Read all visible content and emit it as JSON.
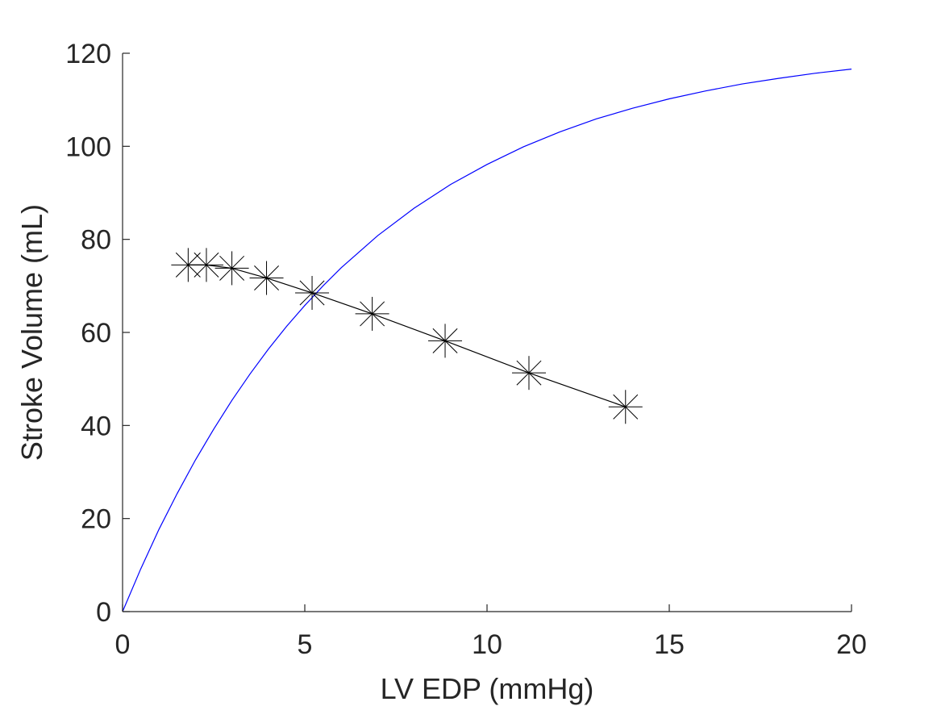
{
  "chart_data": {
    "type": "line",
    "title": "",
    "xlabel": "LV EDP (mmHg)",
    "ylabel": "Stroke Volume (mL)",
    "xlim": [
      0,
      20
    ],
    "ylim": [
      0,
      120
    ],
    "xticks": [
      0,
      5,
      10,
      15,
      20
    ],
    "yticks": [
      0,
      20,
      40,
      60,
      80,
      100,
      120
    ],
    "xtick_labels": [
      "0",
      "5",
      "10",
      "15",
      "20"
    ],
    "ytick_labels": [
      "0",
      "20",
      "40",
      "60",
      "80",
      "100",
      "120"
    ],
    "grid": false,
    "legend": "none",
    "axis_color": "#262626",
    "series": [
      {
        "style": "line",
        "color": "#0000ff",
        "x": [
          0,
          0.5,
          1,
          1.5,
          2,
          2.5,
          3,
          3.5,
          4,
          4.5,
          5,
          5.5,
          6,
          7,
          8,
          9,
          10,
          11,
          12,
          13,
          14,
          15,
          16,
          17,
          18,
          19,
          20
        ],
        "y": [
          0,
          9.2,
          17.7,
          25.4,
          32.6,
          39.2,
          45.4,
          51.1,
          56.4,
          61.3,
          65.8,
          70.0,
          73.9,
          80.8,
          86.7,
          91.8,
          96.1,
          99.9,
          103.1,
          105.9,
          108.2,
          110.2,
          111.9,
          113.4,
          114.6,
          115.7,
          116.6
        ]
      },
      {
        "style": "line-with-asterisk-markers",
        "color": "#000000",
        "x": [
          1.8,
          2.3,
          3.0,
          3.95,
          5.2,
          6.85,
          8.85,
          11.15,
          13.8
        ],
        "y": [
          74.5,
          74.5,
          73.8,
          71.7,
          68.5,
          64.0,
          58.2,
          51.3,
          44.0
        ]
      }
    ]
  }
}
